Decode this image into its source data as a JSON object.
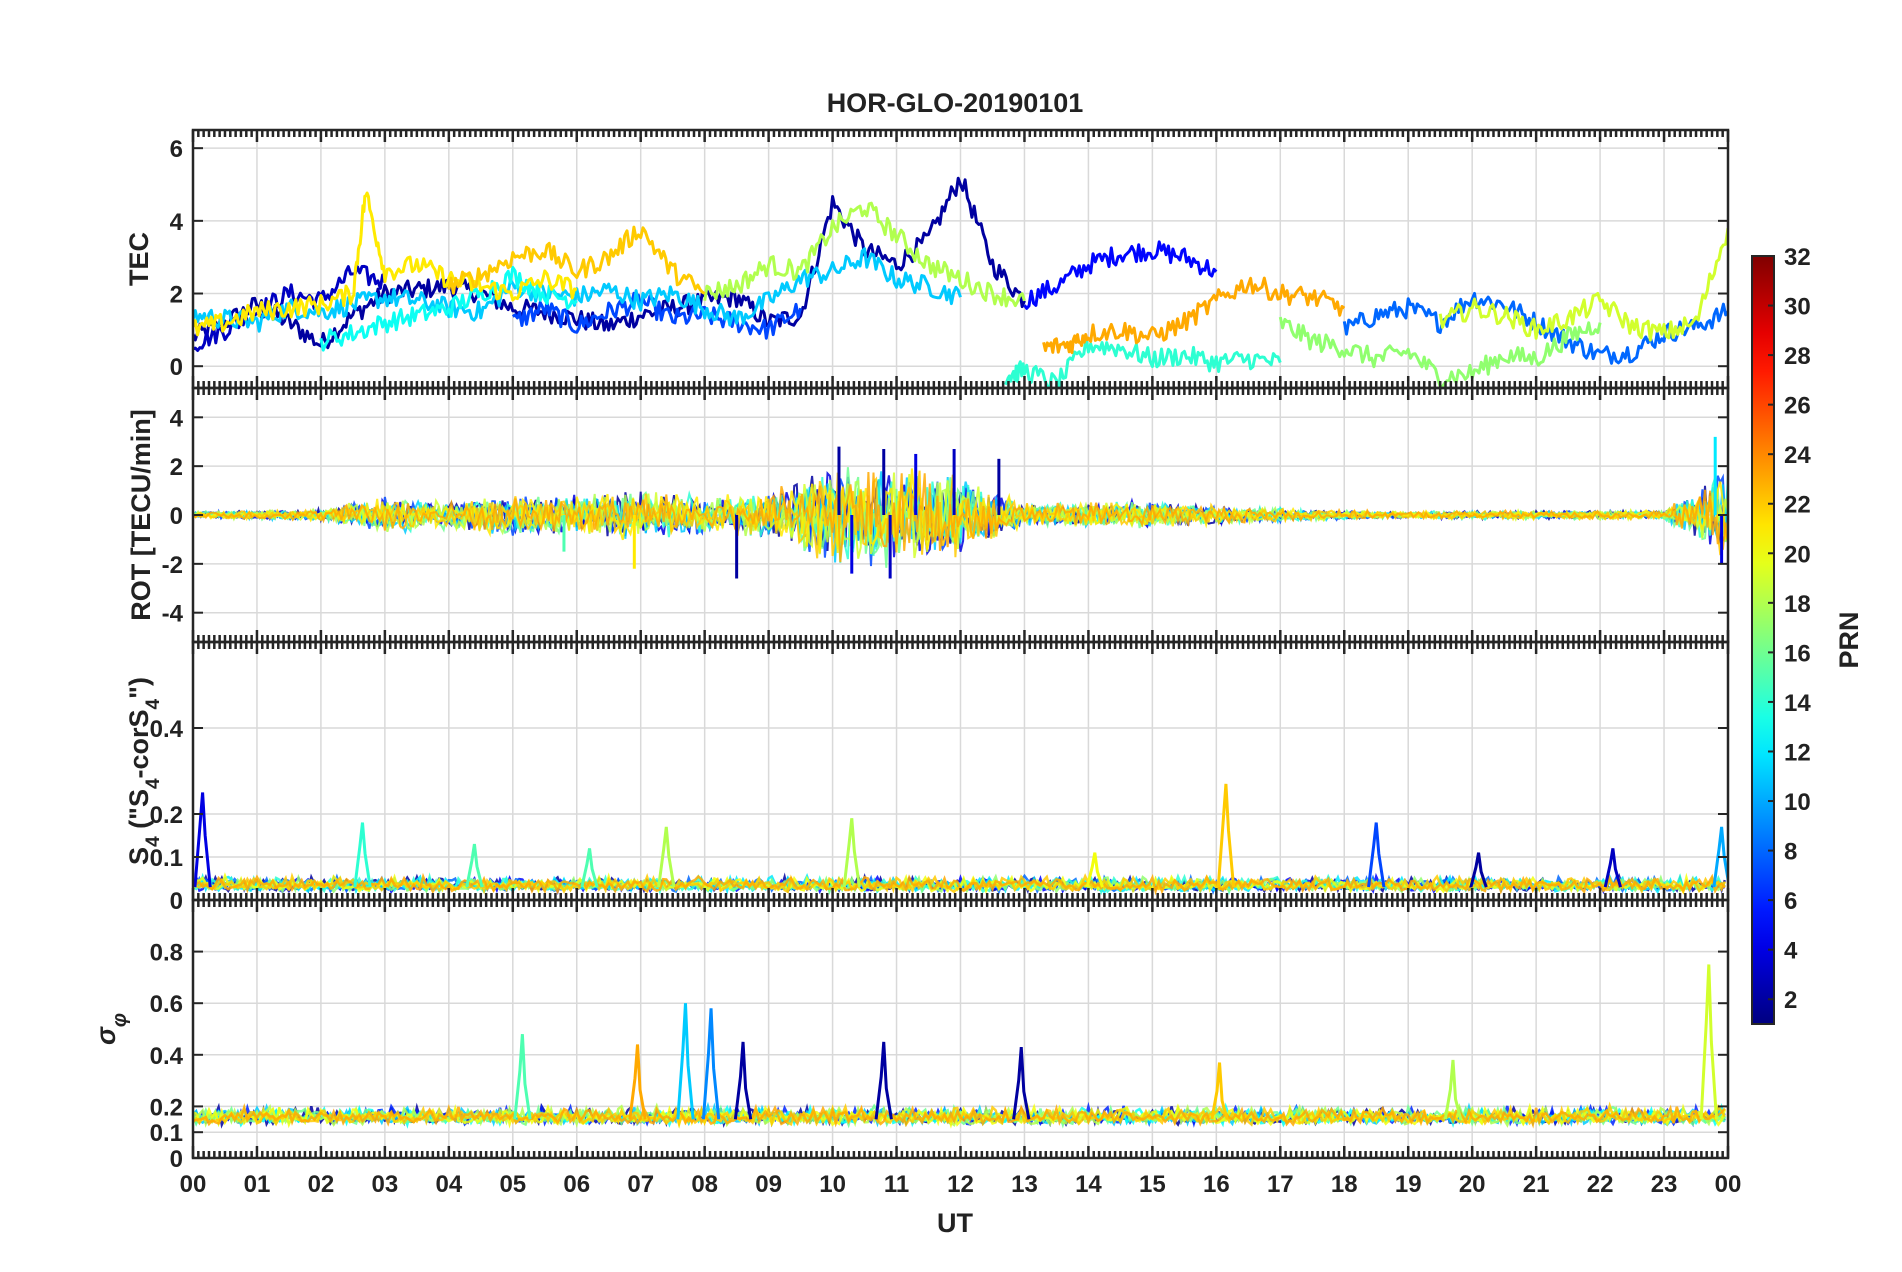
{
  "title": "HOR-GLO-20190101",
  "chart_data": {
    "type": "line",
    "title": "HOR-GLO-20190101",
    "xlabel": "UT",
    "x_ticks": [
      "00",
      "01",
      "02",
      "03",
      "04",
      "05",
      "06",
      "07",
      "08",
      "09",
      "10",
      "11",
      "12",
      "13",
      "14",
      "15",
      "16",
      "17",
      "18",
      "19",
      "20",
      "21",
      "22",
      "23",
      "00"
    ],
    "xlim": [
      0,
      24
    ],
    "grid": true,
    "panels": [
      {
        "id": "tec",
        "ylabel": "TEC",
        "ylim": [
          -0.6,
          6.5
        ],
        "yticks": [
          0,
          2,
          4,
          6
        ],
        "series": [
          {
            "prn": 2,
            "x": [
              0,
              0.5,
              1,
              1.5,
              2,
              2.5,
              3,
              3.5,
              4,
              4.5,
              5,
              5.5,
              6,
              6.5,
              7,
              7.5,
              8,
              8.5,
              9,
              9.5,
              10,
              10.5,
              11,
              11.5,
              12,
              12.5,
              13
            ],
            "y": [
              0.8,
              1.2,
              1.7,
              1.2,
              0.6,
              1.4,
              2.0,
              2.1,
              2.2,
              2.0,
              1.6,
              1.5,
              1.3,
              1.1,
              1.4,
              1.6,
              1.8,
              1.9,
              1.2,
              1.4,
              4.5,
              3.2,
              2.8,
              3.5,
              5.2,
              2.8,
              1.8
            ]
          },
          {
            "prn": 3,
            "x": [
              0,
              0.5,
              1,
              1.5,
              2,
              2.5,
              3
            ],
            "y": [
              0.6,
              1.0,
              1.5,
              2.0,
              1.8,
              2.6,
              2.3
            ]
          },
          {
            "prn": 5,
            "x": [
              13,
              13.5,
              14,
              14.5,
              15,
              15.5,
              16
            ],
            "y": [
              1.8,
              2.2,
              2.8,
              3.1,
              3.2,
              3.0,
              2.6
            ]
          },
          {
            "prn": 7,
            "x": [
              5,
              5.5,
              6,
              6.5,
              7,
              7.5,
              8,
              8.5,
              9,
              9.5
            ],
            "y": [
              1.2,
              1.6,
              1.1,
              1.5,
              1.8,
              1.3,
              1.4,
              1.2,
              1.0,
              1.6
            ]
          },
          {
            "prn": 8,
            "x": [
              18,
              18.5,
              19,
              19.5,
              20,
              20.5,
              21,
              21.5,
              22,
              22.5,
              23,
              23.5,
              24
            ],
            "y": [
              1.0,
              1.4,
              1.6,
              1.2,
              1.9,
              1.7,
              1.2,
              0.7,
              0.3,
              0.4,
              0.9,
              1.1,
              1.5
            ]
          },
          {
            "prn": 11,
            "x": [
              0,
              0.5,
              1,
              1.5,
              2,
              2.5,
              3,
              3.5,
              4,
              4.5,
              5,
              5.5,
              6,
              6.5,
              7,
              7.5,
              8,
              8.5,
              9,
              9.5,
              10,
              10.5,
              11,
              11.5,
              12
            ],
            "y": [
              1.4,
              1.3,
              1.2,
              1.6,
              1.5,
              1.7,
              1.9,
              1.8,
              1.6,
              1.5,
              2.2,
              2.0,
              1.9,
              2.1,
              1.8,
              2.0,
              1.6,
              1.3,
              1.8,
              2.4,
              2.6,
              3.0,
              2.4,
              2.2,
              1.9
            ]
          },
          {
            "prn": 13,
            "x": [
              2,
              2.5,
              3,
              3.5,
              4,
              4.5,
              5,
              5.5,
              6
            ],
            "y": [
              0.7,
              0.9,
              1.2,
              1.4,
              1.6,
              2.0,
              2.5,
              2.0,
              1.8
            ]
          },
          {
            "prn": 14,
            "x": [
              12.7,
              13,
              13.5,
              14,
              14.5,
              15,
              15.5,
              16,
              16.5,
              17
            ],
            "y": [
              -0.3,
              -0.1,
              -0.5,
              0.6,
              0.5,
              0.2,
              0.3,
              0.1,
              0.2,
              0.1
            ]
          },
          {
            "prn": 17,
            "x": [
              17,
              17.5,
              18,
              18.5,
              19,
              19.5,
              20,
              20.5,
              21,
              21.5,
              22
            ],
            "y": [
              1.2,
              0.7,
              0.5,
              0.2,
              0.4,
              -0.3,
              -0.2,
              0.3,
              0.2,
              0.8,
              1.2
            ]
          },
          {
            "prn": 18,
            "x": [
              8,
              8.5,
              9,
              9.5,
              10,
              10.5,
              11,
              11.5,
              12,
              12.5,
              13
            ],
            "y": [
              2.0,
              2.2,
              2.8,
              2.6,
              3.8,
              4.4,
              3.6,
              2.8,
              2.4,
              2.0,
              1.8
            ]
          },
          {
            "prn": 21,
            "x": [
              0,
              0.5,
              1,
              1.5,
              2,
              2.5,
              2.7,
              3,
              3.5,
              4,
              4.5,
              5,
              5.5,
              6
            ],
            "y": [
              1.0,
              1.2,
              1.5,
              1.6,
              1.7,
              2.0,
              4.8,
              2.6,
              2.8,
              2.4,
              2.2,
              2.0,
              2.4,
              2.1
            ]
          },
          {
            "prn": 22,
            "x": [
              4,
              4.5,
              5,
              5.5,
              6,
              6.5,
              7,
              7.5,
              8
            ],
            "y": [
              2.2,
              2.5,
              3.0,
              3.2,
              2.6,
              3.0,
              3.8,
              2.6,
              2.0
            ]
          },
          {
            "prn": 23,
            "x": [
              13.3,
              13.7,
              14,
              14.5,
              15,
              15.5,
              16,
              16.5,
              17,
              17.5,
              18
            ],
            "y": [
              0.5,
              0.6,
              0.9,
              1.0,
              0.8,
              1.2,
              1.8,
              2.3,
              2.0,
              1.9,
              1.6
            ]
          },
          {
            "prn": 19,
            "x": [
              19.5,
              20,
              20.5,
              21,
              21.5,
              22,
              22.5,
              23,
              23.5,
              24
            ],
            "y": [
              1.2,
              1.6,
              1.4,
              1.0,
              1.3,
              1.8,
              1.1,
              0.9,
              1.2,
              3.8
            ]
          }
        ]
      },
      {
        "id": "rot",
        "ylabel": "ROT [TECU/min]",
        "ylim": [
          -5.2,
          5.2
        ],
        "yticks": [
          -4,
          -2,
          0,
          2,
          4
        ],
        "envelope": {
          "x": [
            0,
            1,
            2,
            3,
            4,
            5,
            6,
            7,
            8,
            9,
            10,
            11,
            12,
            13,
            14,
            15,
            16,
            17,
            18,
            19,
            20,
            21,
            22,
            23,
            24
          ],
          "amplitude": [
            0.15,
            0.2,
            0.25,
            0.8,
            0.6,
            0.9,
            0.9,
            1.1,
            0.8,
            1.0,
            2.2,
            2.2,
            1.8,
            0.5,
            0.6,
            0.6,
            0.4,
            0.3,
            0.2,
            0.15,
            0.2,
            0.2,
            0.2,
            0.2,
            2.0
          ]
        },
        "spikes": [
          {
            "x": 8.5,
            "y": -2.6,
            "prn": 2
          },
          {
            "x": 10.1,
            "y": 2.8,
            "prn": 2
          },
          {
            "x": 10.3,
            "y": -2.4,
            "prn": 4
          },
          {
            "x": 10.8,
            "y": 2.7,
            "prn": 2
          },
          {
            "x": 10.9,
            "y": -2.6,
            "prn": 3
          },
          {
            "x": 11.3,
            "y": 2.5,
            "prn": 4
          },
          {
            "x": 11.9,
            "y": 2.7,
            "prn": 3
          },
          {
            "x": 12.6,
            "y": 2.3,
            "prn": 2
          },
          {
            "x": 6.9,
            "y": -2.2,
            "prn": 21
          },
          {
            "x": 5.8,
            "y": -1.5,
            "prn": 15
          },
          {
            "x": 23.8,
            "y": 3.2,
            "prn": 12
          },
          {
            "x": 23.9,
            "y": -2.0,
            "prn": 4
          }
        ]
      },
      {
        "id": "s4",
        "ylabel_main": "S",
        "ylabel_sub": "4",
        "ylabel_mid": " (\"S",
        "ylabel_sub2": "4",
        "ylabel_mid2": "-corS",
        "ylabel_sub3": "4",
        "ylabel_end": "\")",
        "ylim": [
          0,
          0.6
        ],
        "yticks": [
          0,
          0.1,
          0.2,
          0.4
        ],
        "spikes": [
          {
            "x": 0.15,
            "y": 0.25,
            "prn": 4
          },
          {
            "x": 2.65,
            "y": 0.18,
            "prn": 14
          },
          {
            "x": 4.4,
            "y": 0.13,
            "prn": 15
          },
          {
            "x": 6.2,
            "y": 0.12,
            "prn": 15
          },
          {
            "x": 7.4,
            "y": 0.17,
            "prn": 18
          },
          {
            "x": 10.3,
            "y": 0.19,
            "prn": 18
          },
          {
            "x": 14.1,
            "y": 0.11,
            "prn": 20
          },
          {
            "x": 16.15,
            "y": 0.27,
            "prn": 22
          },
          {
            "x": 18.5,
            "y": 0.18,
            "prn": 7
          },
          {
            "x": 20.1,
            "y": 0.11,
            "prn": 2
          },
          {
            "x": 22.2,
            "y": 0.12,
            "prn": 3
          },
          {
            "x": 23.9,
            "y": 0.17,
            "prn": 10
          }
        ]
      },
      {
        "id": "sigma",
        "ylabel": "σ φ",
        "ylim": [
          0,
          1.0
        ],
        "yticks": [
          0,
          0.1,
          0.2,
          0.4,
          0.6,
          0.8
        ],
        "spikes": [
          {
            "x": 5.15,
            "y": 0.48,
            "prn": 15
          },
          {
            "x": 7.7,
            "y": 0.6,
            "prn": 11
          },
          {
            "x": 8.1,
            "y": 0.58,
            "prn": 9
          },
          {
            "x": 6.95,
            "y": 0.44,
            "prn": 23
          },
          {
            "x": 8.6,
            "y": 0.45,
            "prn": 2
          },
          {
            "x": 10.8,
            "y": 0.45,
            "prn": 2
          },
          {
            "x": 12.95,
            "y": 0.43,
            "prn": 2
          },
          {
            "x": 16.05,
            "y": 0.37,
            "prn": 22
          },
          {
            "x": 19.7,
            "y": 0.38,
            "prn": 18
          },
          {
            "x": 23.7,
            "y": 0.75,
            "prn": 19
          }
        ]
      }
    ],
    "colorbar": {
      "label": "PRN",
      "range": [
        1,
        32
      ],
      "ticks": [
        2,
        4,
        6,
        8,
        10,
        12,
        14,
        16,
        18,
        20,
        22,
        24,
        26,
        28,
        30,
        32
      ],
      "colormap": "jet"
    }
  }
}
